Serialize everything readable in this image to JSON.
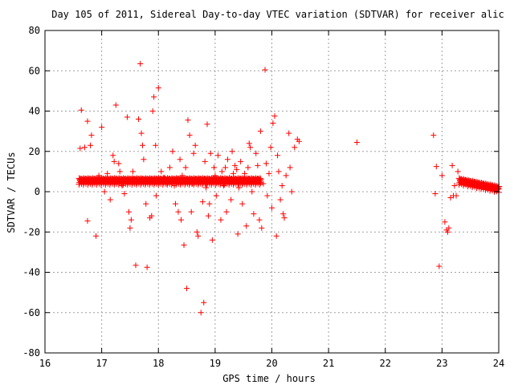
{
  "chart_data": {
    "type": "scatter",
    "title": "Day 105 of 2011, Sidereal Day-to-day VTEC variation (SDTVAR) for receiver alic",
    "xlabel": "GPS time / hours",
    "ylabel": "SDTVAR / TECUs",
    "xlim": [
      16,
      24
    ],
    "ylim": [
      -80,
      80
    ],
    "xticks": [
      "16",
      "17",
      "18",
      "19",
      "20",
      "21",
      "22",
      "23",
      "24"
    ],
    "yticks": [
      "-80",
      "-60",
      "-40",
      "-20",
      "0",
      "20",
      "40",
      "60",
      "80"
    ],
    "grid": true,
    "marker": "+",
    "marker_color": "#ff0000",
    "bands": [
      {
        "name": "dense-band-16-20",
        "x_start": 16.6,
        "x_end": 19.8,
        "y_start": 5,
        "y_end": 5
      },
      {
        "name": "dense-band-23-24",
        "x_start": 23.3,
        "x_end": 24.0,
        "y_start": 5,
        "y_end": 1
      }
    ],
    "series": [
      {
        "name": "SDTVAR",
        "color": "#ff0000",
        "points": [
          [
            16.64,
            40.5
          ],
          [
            16.62,
            21.5
          ],
          [
            16.7,
            22
          ],
          [
            16.75,
            35
          ],
          [
            16.8,
            23
          ],
          [
            16.82,
            28
          ],
          [
            16.9,
            -22
          ],
          [
            16.75,
            -14.5
          ],
          [
            16.95,
            8
          ],
          [
            17.0,
            32
          ],
          [
            17.05,
            0
          ],
          [
            17.1,
            9
          ],
          [
            17.15,
            -4
          ],
          [
            17.2,
            18
          ],
          [
            17.22,
            15
          ],
          [
            17.25,
            43
          ],
          [
            17.3,
            14
          ],
          [
            17.32,
            10
          ],
          [
            17.36,
            3
          ],
          [
            17.4,
            -1
          ],
          [
            17.45,
            37
          ],
          [
            17.48,
            -10
          ],
          [
            17.5,
            -18
          ],
          [
            17.52,
            -14
          ],
          [
            17.55,
            10
          ],
          [
            17.58,
            6
          ],
          [
            17.6,
            -36.5
          ],
          [
            17.65,
            36
          ],
          [
            17.68,
            63.5
          ],
          [
            17.7,
            29
          ],
          [
            17.72,
            23
          ],
          [
            17.74,
            16
          ],
          [
            17.78,
            -6
          ],
          [
            17.8,
            -37.5
          ],
          [
            17.85,
            -13
          ],
          [
            17.88,
            -12
          ],
          [
            17.9,
            40
          ],
          [
            17.92,
            47
          ],
          [
            17.95,
            23
          ],
          [
            17.96,
            -2
          ],
          [
            17.98,
            6
          ],
          [
            18.0,
            51.5
          ],
          [
            18.05,
            10
          ],
          [
            18.1,
            7
          ],
          [
            18.15,
            4
          ],
          [
            18.2,
            12
          ],
          [
            18.25,
            20
          ],
          [
            18.28,
            3
          ],
          [
            18.3,
            -6
          ],
          [
            18.35,
            -10
          ],
          [
            18.38,
            16
          ],
          [
            18.4,
            -14
          ],
          [
            18.42,
            8
          ],
          [
            18.45,
            -26.5
          ],
          [
            18.48,
            12
          ],
          [
            18.5,
            -48
          ],
          [
            18.52,
            35.5
          ],
          [
            18.55,
            28
          ],
          [
            18.58,
            -10
          ],
          [
            18.6,
            4
          ],
          [
            18.62,
            19
          ],
          [
            18.65,
            23
          ],
          [
            18.68,
            -20
          ],
          [
            18.7,
            -22
          ],
          [
            18.72,
            6
          ],
          [
            18.75,
            -60
          ],
          [
            18.78,
            -5
          ],
          [
            18.8,
            -55
          ],
          [
            18.82,
            15
          ],
          [
            18.84,
            2
          ],
          [
            18.86,
            33.5
          ],
          [
            18.88,
            -12
          ],
          [
            18.9,
            -6
          ],
          [
            18.92,
            19
          ],
          [
            18.95,
            -24
          ],
          [
            18.98,
            12
          ],
          [
            19.0,
            8
          ],
          [
            19.02,
            -2
          ],
          [
            19.05,
            18
          ],
          [
            19.08,
            6
          ],
          [
            19.1,
            -14
          ],
          [
            19.12,
            10
          ],
          [
            19.15,
            3
          ],
          [
            19.18,
            12
          ],
          [
            19.2,
            -10
          ],
          [
            19.22,
            16
          ],
          [
            19.25,
            7
          ],
          [
            19.28,
            -4
          ],
          [
            19.3,
            20
          ],
          [
            19.32,
            9
          ],
          [
            19.35,
            13
          ],
          [
            19.38,
            11
          ],
          [
            19.4,
            -21
          ],
          [
            19.42,
            2
          ],
          [
            19.45,
            15
          ],
          [
            19.48,
            -6
          ],
          [
            19.5,
            6
          ],
          [
            19.52,
            9
          ],
          [
            19.55,
            -17
          ],
          [
            19.58,
            12
          ],
          [
            19.6,
            24
          ],
          [
            19.62,
            22
          ],
          [
            19.65,
            0
          ],
          [
            19.68,
            -11
          ],
          [
            19.7,
            6
          ],
          [
            19.72,
            19
          ],
          [
            19.75,
            13
          ],
          [
            19.78,
            -14
          ],
          [
            19.8,
            30
          ],
          [
            19.82,
            -18
          ],
          [
            19.85,
            4
          ],
          [
            19.88,
            60.5
          ],
          [
            19.9,
            14
          ],
          [
            19.92,
            -2
          ],
          [
            19.95,
            9
          ],
          [
            19.98,
            22
          ],
          [
            20.0,
            -8
          ],
          [
            20.02,
            34
          ],
          [
            20.05,
            37.5
          ],
          [
            20.08,
            -22
          ],
          [
            20.1,
            18
          ],
          [
            20.12,
            10
          ],
          [
            20.15,
            -4
          ],
          [
            20.18,
            3
          ],
          [
            20.2,
            -11
          ],
          [
            20.22,
            -13
          ],
          [
            20.25,
            8
          ],
          [
            20.3,
            29
          ],
          [
            20.32,
            12
          ],
          [
            20.35,
            0
          ],
          [
            20.4,
            22
          ],
          [
            20.45,
            26
          ],
          [
            20.48,
            25
          ],
          [
            21.5,
            24.5
          ],
          [
            22.85,
            28
          ],
          [
            22.9,
            12.5
          ],
          [
            22.88,
            -1
          ],
          [
            22.95,
            -37
          ],
          [
            23.0,
            8
          ],
          [
            23.05,
            -15
          ],
          [
            23.08,
            -19
          ],
          [
            23.1,
            -20
          ],
          [
            23.12,
            -18
          ],
          [
            23.15,
            -3
          ],
          [
            23.18,
            13
          ],
          [
            23.2,
            -2
          ],
          [
            23.22,
            3
          ],
          [
            23.25,
            -2
          ],
          [
            23.28,
            10
          ]
        ]
      }
    ]
  }
}
